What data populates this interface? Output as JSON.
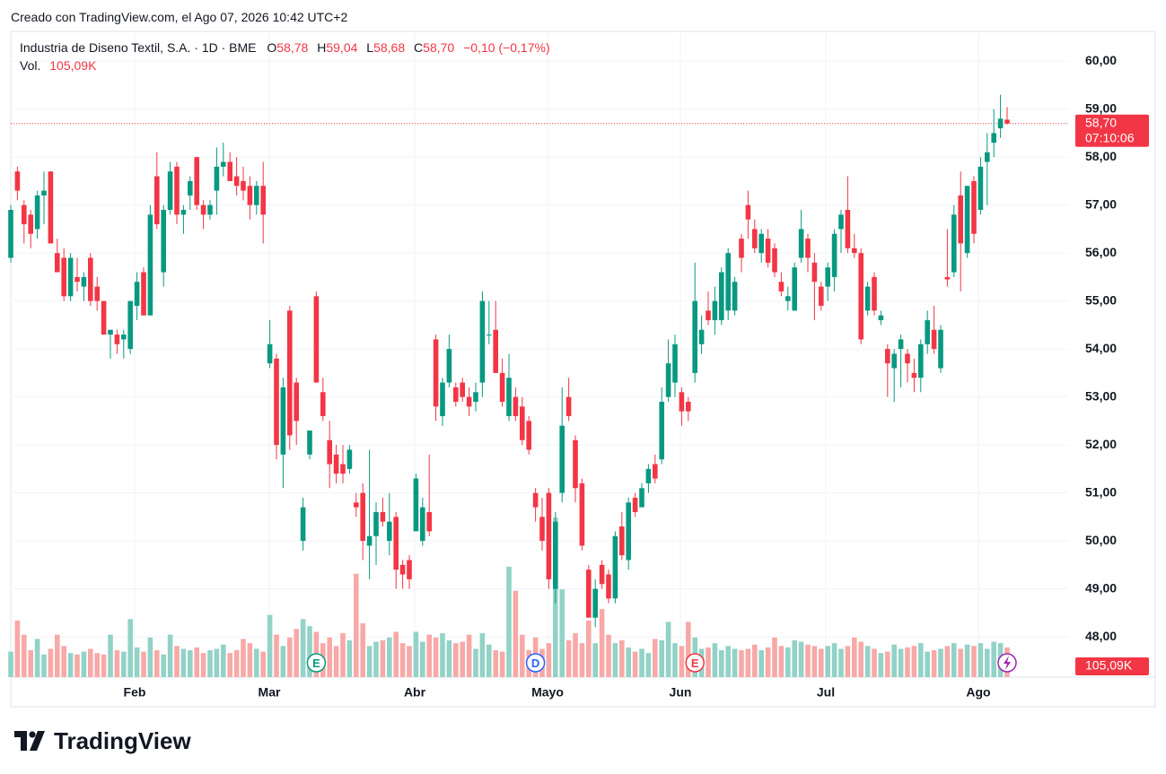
{
  "header": {
    "created": "Creado con TradingView.com, el Ago 07, 2026 10:42 UTC+2"
  },
  "footer": {
    "brand": "TradingView"
  },
  "chart_data": {
    "type": "candlestick",
    "title": "Industria de Diseno Textil, S.A. · 1D · BME",
    "legend": {
      "o": "O",
      "open": "58,78",
      "h": "H",
      "high": "59,04",
      "l": "L",
      "low": "58,68",
      "c": "C",
      "close": "58,70",
      "change": "−0,10 (−0,17%)",
      "vol": "Vol.",
      "volume": "105,09K"
    },
    "up_color": "#089981",
    "down_color": "#f23645",
    "volume_up_color": "#92d2c7",
    "volume_down_color": "#f7a9a7",
    "ylim": [
      47.16,
      60.62
    ],
    "yticks": [
      {
        "value": 48,
        "label": "48,00"
      },
      {
        "value": 49,
        "label": "49,00"
      },
      {
        "value": 50,
        "label": "50,00"
      },
      {
        "value": 51,
        "label": "51,00"
      },
      {
        "value": 52,
        "label": "52,00"
      },
      {
        "value": 53,
        "label": "53,00"
      },
      {
        "value": 54,
        "label": "54,00"
      },
      {
        "value": 55,
        "label": "55,00"
      },
      {
        "value": 56,
        "label": "56,00"
      },
      {
        "value": 57,
        "label": "57,00"
      },
      {
        "value": 58,
        "label": "58,00"
      },
      {
        "value": 59,
        "label": "59,00"
      },
      {
        "value": 60,
        "label": "60,00"
      }
    ],
    "vlim": [
      0,
      2280
    ],
    "x_labels": [
      "Feb",
      "Mar",
      "Abr",
      "Mayo",
      "Jun",
      "Jul",
      "Ago"
    ],
    "grid": true,
    "last_price": {
      "value": 58.7,
      "label": "58,70",
      "countdown": "07:10:06"
    },
    "last_volume_label": "105,09K",
    "events": [
      {
        "label": "E",
        "index": 46
      },
      {
        "label": "D",
        "index": 79
      },
      {
        "label": "E",
        "index": 103
      }
    ],
    "ohlc": [
      [
        55.9,
        57.0,
        55.8,
        56.9
      ],
      [
        57.7,
        57.8,
        57.1,
        57.3
      ],
      [
        57.0,
        57.1,
        56.2,
        56.6
      ],
      [
        56.8,
        56.9,
        56.1,
        56.4
      ],
      [
        56.5,
        57.3,
        56.3,
        57.2
      ],
      [
        57.2,
        57.7,
        56.6,
        57.3
      ],
      [
        57.7,
        57.7,
        56.2,
        56.2
      ],
      [
        56.0,
        56.3,
        55.6,
        55.6
      ],
      [
        55.9,
        56.1,
        55.0,
        55.1
      ],
      [
        55.1,
        56.0,
        55.0,
        55.9
      ],
      [
        55.5,
        55.9,
        55.2,
        55.4
      ],
      [
        55.3,
        55.6,
        55.0,
        55.5
      ],
      [
        55.9,
        56.0,
        54.9,
        55.0
      ],
      [
        55.3,
        55.5,
        54.8,
        55.0
      ],
      [
        55.0,
        55.0,
        54.3,
        54.3
      ],
      [
        54.3,
        54.4,
        53.8,
        54.4
      ],
      [
        54.3,
        54.4,
        53.9,
        54.1
      ],
      [
        54.2,
        54.4,
        53.8,
        54.3
      ],
      [
        54.0,
        55.0,
        53.9,
        55.0
      ],
      [
        54.9,
        55.6,
        54.6,
        55.4
      ],
      [
        55.6,
        55.7,
        54.7,
        54.7
      ],
      [
        54.7,
        57.0,
        54.7,
        56.8
      ],
      [
        57.6,
        58.1,
        56.5,
        56.6
      ],
      [
        55.6,
        57.0,
        55.3,
        56.9
      ],
      [
        56.9,
        57.9,
        56.8,
        57.7
      ],
      [
        57.8,
        57.9,
        56.6,
        56.8
      ],
      [
        56.8,
        57.0,
        56.4,
        56.9
      ],
      [
        57.2,
        57.6,
        56.9,
        57.5
      ],
      [
        58.0,
        58.0,
        56.9,
        57.0
      ],
      [
        57.0,
        57.1,
        56.5,
        56.8
      ],
      [
        56.8,
        57.1,
        56.7,
        57.0
      ],
      [
        57.3,
        58.2,
        56.8,
        57.8
      ],
      [
        57.8,
        58.3,
        57.6,
        57.9
      ],
      [
        57.9,
        58.1,
        57.5,
        57.5
      ],
      [
        57.6,
        58.0,
        57.2,
        57.4
      ],
      [
        57.5,
        57.8,
        57.1,
        57.3
      ],
      [
        57.4,
        57.6,
        56.7,
        57.0
      ],
      [
        57.0,
        57.5,
        56.8,
        57.4
      ],
      [
        57.4,
        57.9,
        56.2,
        56.8
      ],
      [
        53.7,
        54.6,
        53.6,
        54.1
      ],
      [
        53.8,
        53.9,
        51.7,
        52.0
      ],
      [
        51.8,
        53.4,
        51.1,
        53.2
      ],
      [
        54.8,
        54.9,
        51.9,
        52.2
      ],
      [
        53.3,
        53.4,
        52.0,
        52.5
      ],
      [
        50.0,
        50.9,
        49.8,
        50.7
      ],
      [
        51.8,
        52.3,
        51.7,
        52.3
      ],
      [
        55.1,
        55.2,
        53.3,
        53.3
      ],
      [
        53.1,
        53.4,
        52.5,
        52.6
      ],
      [
        52.1,
        52.5,
        51.1,
        51.6
      ],
      [
        51.8,
        52.0,
        51.2,
        51.4
      ],
      [
        51.6,
        52.0,
        51.2,
        51.4
      ],
      [
        51.5,
        52.0,
        51.4,
        51.9
      ],
      [
        50.8,
        51.0,
        50.5,
        50.7
      ],
      [
        51.0,
        51.2,
        49.6,
        50.0
      ],
      [
        49.9,
        51.9,
        49.2,
        50.1
      ],
      [
        50.1,
        50.8,
        49.5,
        50.6
      ],
      [
        50.6,
        50.9,
        50.3,
        50.4
      ],
      [
        50.0,
        51.0,
        49.7,
        50.4
      ],
      [
        50.5,
        50.6,
        49.0,
        49.4
      ],
      [
        49.5,
        49.6,
        49.0,
        49.3
      ],
      [
        49.6,
        49.7,
        49.0,
        49.2
      ],
      [
        50.2,
        51.4,
        50.2,
        51.3
      ],
      [
        50.0,
        50.9,
        49.9,
        50.7
      ],
      [
        50.6,
        51.8,
        50.1,
        50.2
      ],
      [
        54.2,
        54.3,
        52.5,
        52.8
      ],
      [
        52.6,
        53.4,
        52.4,
        53.3
      ],
      [
        53.3,
        54.3,
        53.2,
        54.0
      ],
      [
        53.2,
        53.3,
        52.8,
        52.9
      ],
      [
        53.3,
        53.4,
        52.9,
        53.0
      ],
      [
        53.0,
        53.2,
        52.6,
        52.8
      ],
      [
        52.9,
        53.3,
        52.7,
        53.1
      ],
      [
        53.3,
        55.2,
        53.0,
        55.0
      ],
      [
        54.3,
        55.0,
        54.1,
        54.3
      ],
      [
        54.4,
        55.0,
        53.5,
        53.5
      ],
      [
        53.5,
        53.8,
        52.8,
        52.9
      ],
      [
        52.6,
        53.9,
        52.5,
        53.4
      ],
      [
        53.0,
        53.2,
        52.5,
        52.6
      ],
      [
        52.8,
        53.0,
        52.0,
        52.1
      ],
      [
        52.5,
        52.6,
        51.8,
        51.9
      ],
      [
        51.0,
        51.1,
        50.4,
        50.7
      ],
      [
        50.5,
        50.9,
        49.8,
        50.0
      ],
      [
        51.0,
        51.1,
        49.0,
        49.2
      ],
      [
        49.0,
        50.6,
        48.7,
        50.4
      ],
      [
        51.0,
        53.2,
        50.8,
        52.4
      ],
      [
        53.0,
        53.4,
        52.5,
        52.6
      ],
      [
        52.1,
        52.2,
        50.8,
        51.1
      ],
      [
        51.2,
        51.3,
        49.8,
        49.9
      ],
      [
        49.4,
        49.5,
        48.4,
        48.4
      ],
      [
        48.4,
        49.2,
        48.2,
        49.0
      ],
      [
        49.5,
        49.6,
        49.0,
        49.1
      ],
      [
        49.3,
        49.4,
        48.7,
        48.8
      ],
      [
        48.8,
        50.2,
        48.7,
        50.1
      ],
      [
        50.3,
        50.6,
        49.6,
        49.7
      ],
      [
        49.6,
        50.9,
        49.4,
        50.8
      ],
      [
        50.9,
        51.0,
        50.5,
        50.6
      ],
      [
        50.7,
        51.2,
        50.7,
        51.1
      ],
      [
        51.2,
        51.6,
        51.0,
        51.5
      ],
      [
        51.6,
        51.8,
        51.2,
        51.3
      ],
      [
        51.7,
        53.2,
        51.6,
        52.9
      ],
      [
        53.0,
        54.2,
        52.9,
        53.7
      ],
      [
        53.3,
        54.3,
        53.0,
        54.1
      ],
      [
        53.1,
        53.2,
        52.4,
        52.7
      ],
      [
        52.9,
        53.0,
        52.5,
        52.7
      ],
      [
        53.5,
        55.8,
        53.3,
        55.0
      ],
      [
        54.1,
        54.7,
        53.9,
        54.4
      ],
      [
        54.8,
        55.2,
        54.5,
        54.6
      ],
      [
        54.6,
        55.3,
        54.3,
        55.0
      ],
      [
        54.6,
        55.7,
        54.5,
        55.6
      ],
      [
        54.8,
        56.1,
        54.6,
        56.0
      ],
      [
        54.8,
        55.5,
        54.7,
        55.4
      ],
      [
        56.3,
        56.4,
        55.6,
        55.9
      ],
      [
        57.0,
        57.3,
        56.3,
        56.7
      ],
      [
        56.5,
        56.7,
        56.0,
        56.1
      ],
      [
        56.0,
        56.5,
        55.8,
        56.4
      ],
      [
        56.3,
        56.5,
        55.7,
        55.8
      ],
      [
        56.1,
        56.2,
        55.5,
        55.6
      ],
      [
        55.4,
        55.6,
        55.1,
        55.2
      ],
      [
        55.0,
        55.3,
        54.8,
        55.1
      ],
      [
        54.8,
        55.8,
        54.8,
        55.7
      ],
      [
        55.9,
        56.9,
        55.8,
        56.5
      ],
      [
        56.3,
        56.4,
        55.6,
        55.9
      ],
      [
        55.8,
        56.0,
        54.6,
        55.4
      ],
      [
        55.3,
        55.4,
        54.8,
        54.9
      ],
      [
        55.3,
        55.8,
        55.0,
        55.7
      ],
      [
        55.5,
        56.5,
        55.2,
        56.4
      ],
      [
        56.5,
        56.9,
        56.0,
        56.8
      ],
      [
        56.9,
        57.6,
        56.0,
        56.1
      ],
      [
        56.1,
        56.4,
        55.9,
        56.0
      ],
      [
        56.0,
        56.1,
        54.1,
        54.2
      ],
      [
        54.8,
        55.4,
        54.7,
        55.3
      ],
      [
        55.5,
        55.6,
        54.7,
        54.8
      ],
      [
        54.6,
        54.8,
        54.5,
        54.7
      ],
      [
        54.0,
        54.1,
        53.0,
        53.7
      ],
      [
        53.6,
        54.0,
        52.9,
        53.9
      ],
      [
        54.0,
        54.3,
        53.2,
        54.2
      ],
      [
        53.9,
        54.0,
        53.3,
        53.7
      ],
      [
        53.5,
        53.8,
        53.1,
        53.4
      ],
      [
        53.4,
        54.2,
        53.1,
        54.1
      ],
      [
        54.1,
        54.8,
        53.9,
        54.6
      ],
      [
        54.4,
        54.9,
        53.9,
        54.0
      ],
      [
        53.6,
        54.5,
        53.5,
        54.4
      ],
      [
        55.5,
        56.5,
        55.3,
        55.45
      ],
      [
        55.6,
        57.0,
        55.5,
        56.8
      ],
      [
        57.2,
        57.7,
        55.2,
        56.2
      ],
      [
        56.0,
        57.4,
        55.9,
        57.4
      ],
      [
        57.5,
        57.6,
        56.2,
        56.4
      ],
      [
        56.9,
        58.0,
        56.8,
        57.8
      ],
      [
        57.9,
        58.5,
        57.0,
        58.1
      ],
      [
        58.3,
        59.0,
        58.0,
        58.5
      ],
      [
        58.6,
        59.3,
        58.4,
        58.8
      ],
      [
        58.78,
        59.04,
        58.68,
        58.7
      ]
    ],
    "volume": [
      90,
      200,
      150,
      95,
      135,
      80,
      100,
      150,
      110,
      85,
      80,
      90,
      100,
      85,
      80,
      150,
      95,
      90,
      205,
      105,
      90,
      140,
      95,
      80,
      150,
      110,
      100,
      95,
      105,
      85,
      95,
      100,
      115,
      85,
      95,
      135,
      120,
      100,
      90,
      220,
      150,
      110,
      140,
      170,
      205,
      180,
      160,
      120,
      140,
      110,
      155,
      130,
      365,
      190,
      110,
      125,
      130,
      140,
      160,
      120,
      110,
      160,
      125,
      150,
      140,
      155,
      130,
      120,
      125,
      150,
      100,
      155,
      115,
      95,
      90,
      390,
      305,
      150,
      95,
      140,
      100,
      120,
      564,
      310,
      130,
      155,
      120,
      200,
      120,
      240,
      150,
      120,
      130,
      105,
      90,
      100,
      85,
      135,
      130,
      195,
      120,
      110,
      195,
      140,
      100,
      105,
      120,
      95,
      110,
      100,
      95,
      100,
      115,
      95,
      105,
      140,
      110,
      105,
      130,
      125,
      115,
      110,
      100,
      110,
      120,
      100,
      110,
      140,
      125,
      110,
      100,
      85,
      90,
      115,
      100,
      105,
      110,
      120,
      90,
      95,
      100,
      110,
      120,
      100,
      115,
      110,
      120,
      100,
      125,
      120,
      105.09
    ]
  }
}
